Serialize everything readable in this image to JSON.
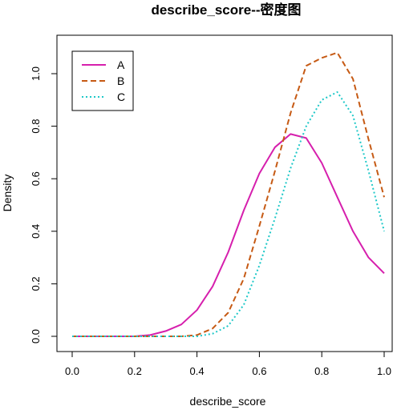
{
  "chart_data": {
    "type": "line",
    "title": "describe_score--密度图",
    "xlabel": "describe_score",
    "ylabel": "Density",
    "xlim": [
      0,
      1
    ],
    "ylim": [
      0,
      1.1
    ],
    "xticks": [
      "0.0",
      "0.2",
      "0.4",
      "0.6",
      "0.8",
      "1.0"
    ],
    "yticks": [
      "0.0",
      "0.2",
      "0.4",
      "0.6",
      "0.8",
      "1.0"
    ],
    "grid": false,
    "legend_position": "top-left",
    "x": [
      0.0,
      0.05,
      0.1,
      0.15,
      0.2,
      0.25,
      0.3,
      0.35,
      0.4,
      0.45,
      0.5,
      0.55,
      0.6,
      0.65,
      0.7,
      0.75,
      0.8,
      0.85,
      0.9,
      0.95,
      1.0
    ],
    "series": [
      {
        "name": "A",
        "color": "#d61fad",
        "dash": "solid",
        "values": [
          0.0,
          0.0,
          0.0,
          0.0,
          0.0,
          0.005,
          0.02,
          0.045,
          0.1,
          0.19,
          0.32,
          0.48,
          0.62,
          0.72,
          0.77,
          0.755,
          0.66,
          0.53,
          0.4,
          0.3,
          0.24
        ]
      },
      {
        "name": "B",
        "color": "#c65a14",
        "dash": "dashed",
        "values": [
          0.0,
          0.0,
          0.0,
          0.0,
          0.0,
          0.0,
          0.0,
          0.0,
          0.005,
          0.03,
          0.09,
          0.22,
          0.42,
          0.63,
          0.85,
          1.03,
          1.06,
          1.08,
          0.98,
          0.75,
          0.53
        ]
      },
      {
        "name": "C",
        "color": "#1ec8c8",
        "dash": "dotted",
        "values": [
          0.0,
          0.0,
          0.0,
          0.0,
          0.0,
          0.0,
          0.0,
          0.0,
          0.0,
          0.01,
          0.04,
          0.12,
          0.27,
          0.45,
          0.64,
          0.8,
          0.9,
          0.93,
          0.84,
          0.63,
          0.4
        ]
      }
    ]
  }
}
